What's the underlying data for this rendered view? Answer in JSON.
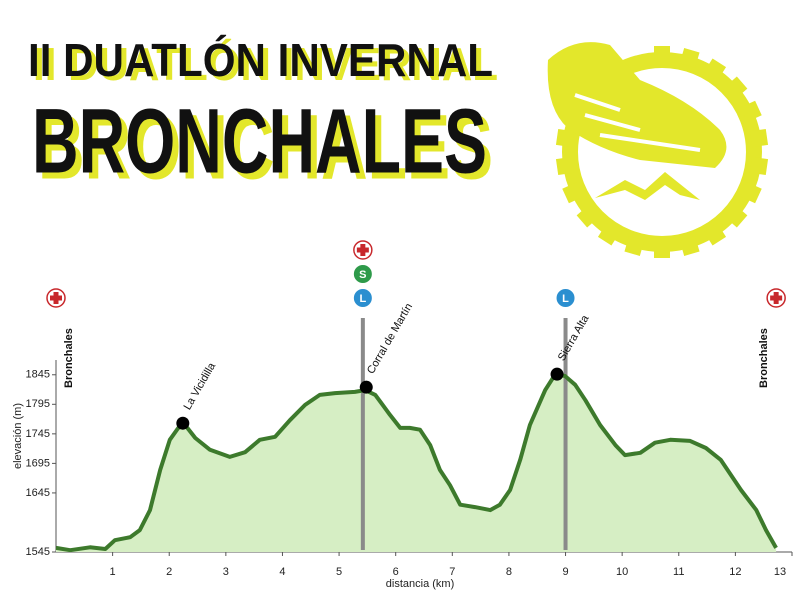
{
  "chart_data": {
    "type": "area",
    "title": "II DUATLÓN INVERNAL",
    "subtitle": "BRONCHALES",
    "xlabel": "distancia (km)",
    "ylabel": "elevación (m)",
    "color": "#3d7a2c",
    "fill_color": "#d6eec4",
    "x": [
      0,
      0.25,
      0.6,
      0.87,
      1.04,
      1.31,
      1.48,
      1.66,
      1.84,
      2.01,
      2.16,
      2.28,
      2.46,
      2.72,
      3.07,
      3.34,
      3.6,
      3.87,
      4.13,
      4.4,
      4.66,
      4.93,
      5.28,
      5.46,
      5.64,
      5.9,
      6.08,
      6.25,
      6.43,
      6.61,
      6.78,
      6.96,
      7.14,
      7.4,
      7.67,
      7.84,
      8.02,
      8.2,
      8.37,
      8.64,
      8.82,
      8.99,
      9.17,
      9.35,
      9.61,
      9.88,
      10.05,
      10.32,
      10.58,
      10.85,
      11.2,
      11.48,
      11.74,
      12.1,
      12.37,
      12.54,
      12.72
    ],
    "values": [
      1552,
      1548,
      1553,
      1550,
      1565,
      1570,
      1582,
      1616,
      1684,
      1735,
      1755,
      1760,
      1738,
      1718,
      1706,
      1714,
      1735,
      1740,
      1768,
      1794,
      1811,
      1814,
      1816,
      1819,
      1811,
      1777,
      1755,
      1755,
      1752,
      1726,
      1684,
      1658,
      1625,
      1621,
      1616,
      1625,
      1650,
      1701,
      1760,
      1819,
      1846,
      1843,
      1828,
      1802,
      1760,
      1726,
      1709,
      1713,
      1730,
      1735,
      1733,
      1721,
      1701,
      1650,
      1616,
      1582,
      1552
    ],
    "xlim": [
      0,
      13
    ],
    "xticks": [
      1,
      2,
      3,
      4,
      5,
      6,
      7,
      8,
      9,
      10,
      11,
      12,
      13
    ],
    "ylim": [
      1545,
      1870
    ],
    "yticks": [
      1545,
      1645,
      1695,
      1745,
      1795,
      1845
    ],
    "waypoints": [
      {
        "x": 2.24,
        "y": 1763,
        "label": "La Vicidilla"
      },
      {
        "x": 5.48,
        "y": 1824,
        "label": "Corral de Martín"
      },
      {
        "x": 8.85,
        "y": 1846,
        "label": "Sierra Alta"
      }
    ],
    "stations": [
      {
        "x": 0,
        "name": "Bronchales",
        "first_aid": true
      },
      {
        "x": 5.42,
        "first_aid": true,
        "letters": [
          "S",
          "L"
        ]
      },
      {
        "x": 9.0,
        "letters": [
          "L"
        ]
      },
      {
        "x": 12.72,
        "name": "Bronchales",
        "first_aid": true
      }
    ]
  }
}
